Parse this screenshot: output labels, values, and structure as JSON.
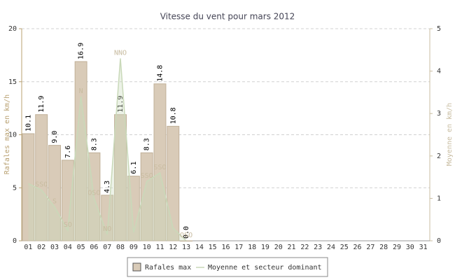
{
  "chart_data": {
    "type": "bar",
    "title": "Vitesse du vent pour mars 2012",
    "y_label": "Rafales max en km/h",
    "y2_label": "Moyenne en km/h",
    "categories": [
      "01",
      "02",
      "03",
      "04",
      "05",
      "06",
      "07",
      "08",
      "09",
      "10",
      "11",
      "12",
      "13",
      "14",
      "15",
      "16",
      "17",
      "18",
      "19",
      "20",
      "21",
      "22",
      "23",
      "24",
      "25",
      "26",
      "27",
      "28",
      "29",
      "30",
      "31"
    ],
    "series": [
      {
        "name": "Rafales max",
        "color": "#d9cbb8",
        "values": [
          10.1,
          11.9,
          9.0,
          7.6,
          16.9,
          8.3,
          4.3,
          11.9,
          6.1,
          8.3,
          14.8,
          10.8,
          0.0,
          null,
          null,
          null,
          null,
          null,
          null,
          null,
          null,
          null,
          null,
          null,
          null,
          null,
          null,
          null,
          null,
          null,
          null
        ],
        "value_labels": [
          "10.1",
          "11.9",
          "9.0",
          "7.6",
          "16.9",
          "8.3",
          "4.3",
          "11.9",
          "6.1",
          "8.3",
          "14.8",
          "10.8",
          "0.0",
          null,
          null,
          null,
          null,
          null,
          null,
          null,
          null,
          null,
          null,
          null,
          null,
          null,
          null,
          null,
          null,
          null,
          null
        ]
      },
      {
        "name": "Moyenne et secteur dominant",
        "color": "#c9d9b9",
        "axis": "y2",
        "values": [
          1.35,
          1.2,
          0.8,
          0.25,
          3.4,
          1.0,
          0.15,
          4.3,
          0.2,
          1.4,
          1.6,
          0.3,
          0.0,
          null,
          null,
          null,
          null,
          null,
          null,
          null,
          null,
          null,
          null,
          null,
          null,
          null,
          null,
          null,
          null,
          null,
          null
        ],
        "directions": [
          null,
          "SSO",
          "S",
          "SO",
          "N",
          "OSO",
          "NO",
          "NNO",
          null,
          "SSO",
          "SSO",
          null,
          "OSO",
          null,
          null,
          null,
          null,
          null,
          null,
          null,
          null,
          null,
          null,
          null,
          null,
          null,
          null,
          null,
          null,
          null,
          null
        ]
      }
    ],
    "ylim": [
      0,
      20
    ],
    "yticks": [
      0,
      5,
      10,
      15,
      20
    ],
    "y2lim": [
      0,
      5
    ],
    "y2ticks": [
      0,
      1,
      2,
      3,
      4,
      5
    ],
    "grid": true
  }
}
